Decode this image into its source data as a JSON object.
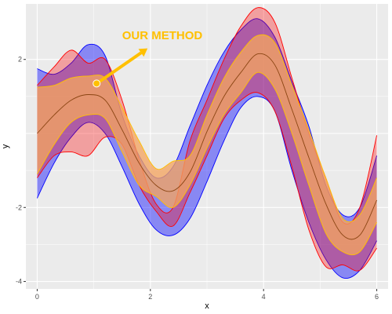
{
  "chart_data": {
    "type": "area",
    "title": "",
    "xlabel": "x",
    "ylabel": "y",
    "xlim": [
      -0.2,
      6.2
    ],
    "ylim": [
      -4.2,
      3.5
    ],
    "x_ticks": [
      0,
      2,
      4,
      6
    ],
    "y_ticks": [
      -4,
      -2,
      2
    ],
    "x_tick_labels": [
      "0",
      "2",
      "4",
      "6"
    ],
    "y_tick_labels": [
      "-4",
      "-2",
      "2"
    ],
    "grid": true,
    "background": "#ebebeb",
    "grid_color": "#ffffff",
    "series": [
      {
        "kind": "band",
        "fill": "#0000ff",
        "stroke": "#0000ff",
        "opacity": 0.42,
        "x": [
          0.0,
          0.3,
          0.6,
          0.9,
          1.2,
          1.5,
          1.8,
          2.1,
          2.4,
          2.7,
          3.0,
          3.3,
          3.6,
          3.9,
          4.2,
          4.5,
          4.8,
          5.1,
          5.4,
          5.7,
          6.0
        ],
        "upper": [
          1.75,
          1.6,
          1.9,
          2.4,
          2.1,
          0.5,
          -0.6,
          -1.2,
          -0.9,
          0.2,
          1.3,
          2.2,
          2.8,
          3.1,
          2.6,
          1.4,
          0.2,
          -1.4,
          -2.2,
          -2.0,
          -0.6
        ],
        "lower": [
          -1.75,
          -0.8,
          -0.1,
          0.3,
          0.0,
          -0.9,
          -1.9,
          -2.6,
          -2.75,
          -2.3,
          -1.3,
          -0.2,
          0.7,
          1.0,
          0.6,
          -1.0,
          -2.4,
          -3.4,
          -3.9,
          -3.7,
          -2.9
        ]
      },
      {
        "kind": "band",
        "fill": "#ff0000",
        "stroke": "#ff0000",
        "opacity": 0.32,
        "x": [
          0.0,
          0.3,
          0.6,
          0.9,
          1.2,
          1.5,
          1.8,
          2.1,
          2.4,
          2.7,
          3.0,
          3.3,
          3.6,
          3.9,
          4.2,
          4.5,
          4.8,
          5.1,
          5.4,
          5.7,
          6.0
        ],
        "upper": [
          1.3,
          1.8,
          2.25,
          1.9,
          2.0,
          0.9,
          -0.7,
          -1.9,
          -2.0,
          -0.2,
          0.9,
          2.0,
          2.9,
          3.4,
          3.0,
          1.5,
          0.0,
          -1.2,
          -2.4,
          -2.0,
          -0.05
        ],
        "lower": [
          -1.2,
          -0.6,
          -0.5,
          -0.6,
          -0.1,
          -0.3,
          -1.4,
          -2.1,
          -2.5,
          -1.6,
          -0.6,
          0.4,
          0.9,
          1.1,
          0.6,
          -0.9,
          -2.6,
          -3.6,
          -3.55,
          -3.7,
          -3.1
        ]
      },
      {
        "kind": "band",
        "fill": "#f4a460",
        "stroke": "#ffc000",
        "opacity": 0.78,
        "x": [
          0.0,
          0.3,
          0.6,
          0.9,
          1.2,
          1.5,
          1.8,
          2.1,
          2.4,
          2.7,
          3.0,
          3.3,
          3.6,
          3.9,
          4.2,
          4.5,
          4.8,
          5.1,
          5.4,
          5.7,
          6.0
        ],
        "upper": [
          1.25,
          1.3,
          1.5,
          1.55,
          1.5,
          0.7,
          -0.2,
          -0.95,
          -0.75,
          -0.6,
          0.5,
          1.5,
          2.2,
          2.65,
          2.45,
          1.3,
          0.1,
          -1.2,
          -2.3,
          -2.2,
          -1.2
        ],
        "lower": [
          -1.1,
          -0.3,
          0.3,
          0.5,
          0.4,
          -0.5,
          -1.4,
          -1.7,
          -2.0,
          -1.4,
          -0.4,
          0.5,
          1.1,
          1.65,
          1.2,
          0.0,
          -1.4,
          -2.7,
          -3.2,
          -3.2,
          -2.4
        ]
      },
      {
        "kind": "line",
        "stroke": "#8b4513",
        "x": [
          0.0,
          0.3,
          0.6,
          0.9,
          1.2,
          1.5,
          1.8,
          2.1,
          2.4,
          2.7,
          3.0,
          3.3,
          3.6,
          3.9,
          4.2,
          4.5,
          4.8,
          5.1,
          5.4,
          5.7,
          6.0
        ],
        "y": [
          0.0,
          0.5,
          0.9,
          1.05,
          0.9,
          0.1,
          -0.8,
          -1.4,
          -1.55,
          -1.05,
          0.05,
          1.0,
          1.65,
          2.15,
          1.85,
          0.65,
          -0.65,
          -1.9,
          -2.75,
          -2.75,
          -1.8
        ]
      }
    ],
    "annotation": {
      "text": "OUR METHOD",
      "color": "#ffc000",
      "text_pos": [
        1.5,
        2.55
      ],
      "arrow_from": [
        1.95,
        2.3
      ],
      "arrow_to": [
        1.1,
        1.4
      ],
      "marker": [
        1.05,
        1.35
      ]
    }
  }
}
